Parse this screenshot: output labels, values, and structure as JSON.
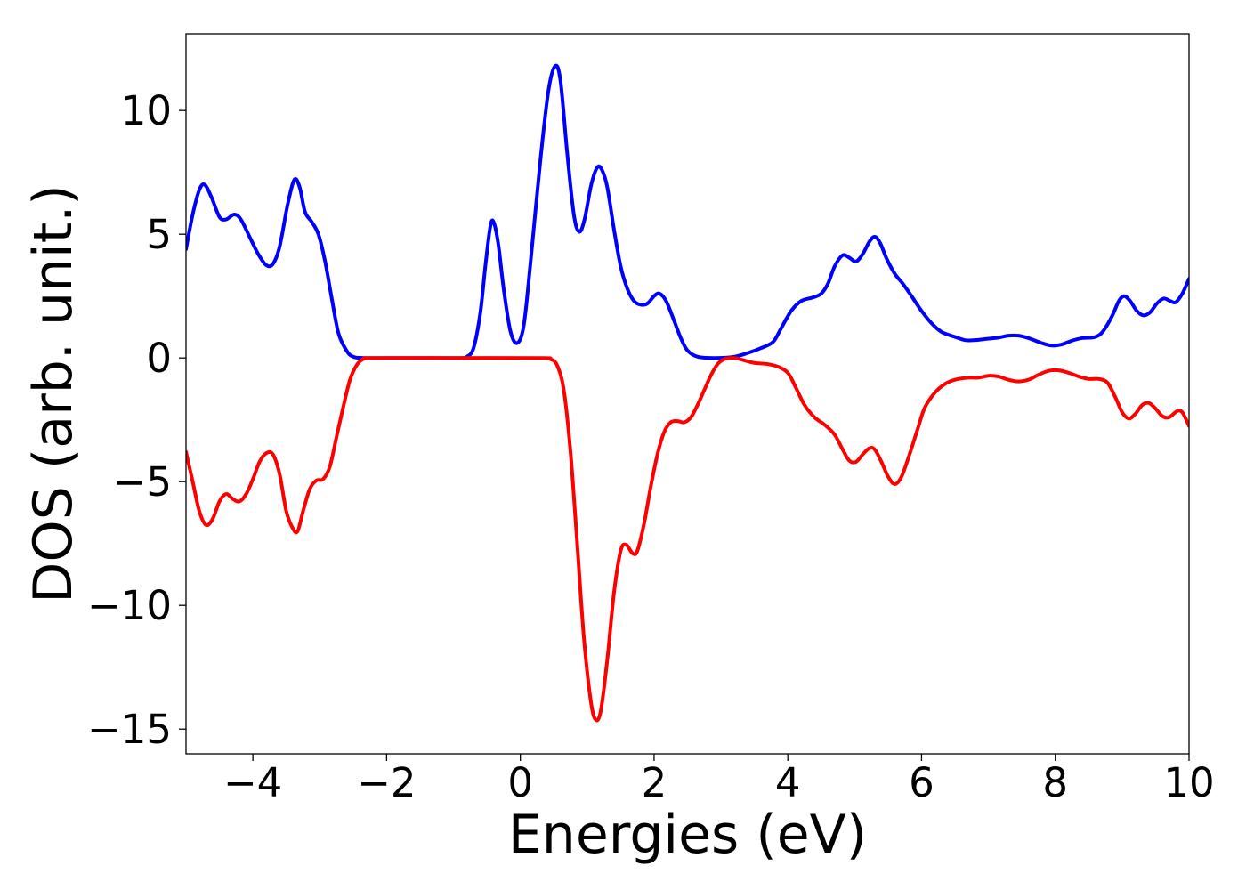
{
  "chart_data": {
    "type": "line",
    "title": "",
    "xlabel": "Energies (eV)",
    "ylabel": "DOS (arb. unit.)",
    "xlim": [
      -5,
      10
    ],
    "ylim": [
      -16,
      13.1
    ],
    "grid": false,
    "legend": "none",
    "xticks": [
      -4,
      -2,
      0,
      2,
      4,
      6,
      8,
      10
    ],
    "xtick_labels": [
      "−4",
      "−2",
      "0",
      "2",
      "4",
      "6",
      "8",
      "10"
    ],
    "yticks": [
      10,
      5,
      0,
      -5,
      -10,
      -15
    ],
    "ytick_labels": [
      "10",
      "5",
      "0",
      "−5",
      "−10",
      "−15"
    ],
    "series": [
      {
        "color": "#0000ff",
        "points": [
          [
            -5.0,
            4.4
          ],
          [
            -4.9,
            5.8
          ],
          [
            -4.8,
            6.8
          ],
          [
            -4.72,
            7.0
          ],
          [
            -4.62,
            6.5
          ],
          [
            -4.5,
            5.7
          ],
          [
            -4.4,
            5.6
          ],
          [
            -4.28,
            5.8
          ],
          [
            -4.18,
            5.6
          ],
          [
            -4.05,
            4.9
          ],
          [
            -3.92,
            4.2
          ],
          [
            -3.8,
            3.75
          ],
          [
            -3.7,
            3.8
          ],
          [
            -3.6,
            4.5
          ],
          [
            -3.48,
            6.2
          ],
          [
            -3.38,
            7.2
          ],
          [
            -3.3,
            6.9
          ],
          [
            -3.22,
            5.9
          ],
          [
            -3.12,
            5.5
          ],
          [
            -3.02,
            5.0
          ],
          [
            -2.92,
            3.9
          ],
          [
            -2.82,
            2.4
          ],
          [
            -2.72,
            1.0
          ],
          [
            -2.6,
            0.3
          ],
          [
            -2.5,
            0.05
          ],
          [
            -2.3,
            0.0
          ],
          [
            -1.5,
            0.0
          ],
          [
            -0.9,
            0.0
          ],
          [
            -0.8,
            0.05
          ],
          [
            -0.7,
            0.4
          ],
          [
            -0.6,
            1.8
          ],
          [
            -0.52,
            3.8
          ],
          [
            -0.45,
            5.3
          ],
          [
            -0.4,
            5.5
          ],
          [
            -0.33,
            4.6
          ],
          [
            -0.25,
            2.8
          ],
          [
            -0.15,
            1.1
          ],
          [
            -0.05,
            0.6
          ],
          [
            0.05,
            1.3
          ],
          [
            0.15,
            3.8
          ],
          [
            0.3,
            8.0
          ],
          [
            0.42,
            10.8
          ],
          [
            0.52,
            11.8
          ],
          [
            0.6,
            11.2
          ],
          [
            0.7,
            8.3
          ],
          [
            0.8,
            5.8
          ],
          [
            0.88,
            5.1
          ],
          [
            0.96,
            5.6
          ],
          [
            1.06,
            7.0
          ],
          [
            1.15,
            7.7
          ],
          [
            1.22,
            7.6
          ],
          [
            1.3,
            6.9
          ],
          [
            1.4,
            5.2
          ],
          [
            1.5,
            3.7
          ],
          [
            1.6,
            2.8
          ],
          [
            1.7,
            2.3
          ],
          [
            1.8,
            2.15
          ],
          [
            1.9,
            2.2
          ],
          [
            2.0,
            2.5
          ],
          [
            2.08,
            2.6
          ],
          [
            2.18,
            2.3
          ],
          [
            2.3,
            1.5
          ],
          [
            2.4,
            0.8
          ],
          [
            2.5,
            0.3
          ],
          [
            2.65,
            0.05
          ],
          [
            2.9,
            0.0
          ],
          [
            3.2,
            0.05
          ],
          [
            3.4,
            0.2
          ],
          [
            3.6,
            0.4
          ],
          [
            3.78,
            0.65
          ],
          [
            3.9,
            1.2
          ],
          [
            4.05,
            1.9
          ],
          [
            4.2,
            2.3
          ],
          [
            4.38,
            2.45
          ],
          [
            4.5,
            2.6
          ],
          [
            4.6,
            3.0
          ],
          [
            4.7,
            3.7
          ],
          [
            4.82,
            4.15
          ],
          [
            4.92,
            4.05
          ],
          [
            5.02,
            3.9
          ],
          [
            5.12,
            4.2
          ],
          [
            5.22,
            4.7
          ],
          [
            5.3,
            4.9
          ],
          [
            5.38,
            4.65
          ],
          [
            5.48,
            4.0
          ],
          [
            5.6,
            3.4
          ],
          [
            5.72,
            3.0
          ],
          [
            5.85,
            2.5
          ],
          [
            6.0,
            1.9
          ],
          [
            6.15,
            1.4
          ],
          [
            6.3,
            1.05
          ],
          [
            6.5,
            0.85
          ],
          [
            6.65,
            0.72
          ],
          [
            6.8,
            0.72
          ],
          [
            7.0,
            0.78
          ],
          [
            7.15,
            0.82
          ],
          [
            7.3,
            0.9
          ],
          [
            7.45,
            0.9
          ],
          [
            7.6,
            0.8
          ],
          [
            7.8,
            0.6
          ],
          [
            7.95,
            0.5
          ],
          [
            8.1,
            0.55
          ],
          [
            8.25,
            0.7
          ],
          [
            8.4,
            0.8
          ],
          [
            8.6,
            0.85
          ],
          [
            8.72,
            1.1
          ],
          [
            8.85,
            1.7
          ],
          [
            8.95,
            2.3
          ],
          [
            9.03,
            2.5
          ],
          [
            9.12,
            2.3
          ],
          [
            9.22,
            1.9
          ],
          [
            9.32,
            1.72
          ],
          [
            9.42,
            1.85
          ],
          [
            9.52,
            2.2
          ],
          [
            9.62,
            2.4
          ],
          [
            9.72,
            2.3
          ],
          [
            9.8,
            2.25
          ],
          [
            9.9,
            2.6
          ],
          [
            10.0,
            3.2
          ]
        ]
      },
      {
        "color": "#ff0000",
        "points": [
          [
            -5.0,
            -3.8
          ],
          [
            -4.9,
            -5.0
          ],
          [
            -4.8,
            -6.2
          ],
          [
            -4.7,
            -6.75
          ],
          [
            -4.6,
            -6.5
          ],
          [
            -4.5,
            -5.8
          ],
          [
            -4.4,
            -5.5
          ],
          [
            -4.3,
            -5.7
          ],
          [
            -4.2,
            -5.8
          ],
          [
            -4.1,
            -5.5
          ],
          [
            -4.0,
            -4.9
          ],
          [
            -3.9,
            -4.2
          ],
          [
            -3.8,
            -3.85
          ],
          [
            -3.7,
            -3.9
          ],
          [
            -3.6,
            -4.7
          ],
          [
            -3.5,
            -6.2
          ],
          [
            -3.4,
            -6.9
          ],
          [
            -3.33,
            -7.0
          ],
          [
            -3.25,
            -6.2
          ],
          [
            -3.15,
            -5.3
          ],
          [
            -3.05,
            -4.95
          ],
          [
            -2.95,
            -4.9
          ],
          [
            -2.85,
            -4.4
          ],
          [
            -2.75,
            -3.2
          ],
          [
            -2.65,
            -2.0
          ],
          [
            -2.55,
            -0.9
          ],
          [
            -2.45,
            -0.3
          ],
          [
            -2.35,
            -0.05
          ],
          [
            -2.2,
            0.0
          ],
          [
            -1.0,
            0.0
          ],
          [
            0.3,
            0.0
          ],
          [
            0.45,
            -0.05
          ],
          [
            0.55,
            -0.3
          ],
          [
            0.65,
            -1.3
          ],
          [
            0.75,
            -3.8
          ],
          [
            0.85,
            -7.5
          ],
          [
            0.95,
            -11.3
          ],
          [
            1.05,
            -13.8
          ],
          [
            1.12,
            -14.6
          ],
          [
            1.2,
            -14.3
          ],
          [
            1.3,
            -12.2
          ],
          [
            1.4,
            -9.5
          ],
          [
            1.5,
            -7.8
          ],
          [
            1.58,
            -7.55
          ],
          [
            1.68,
            -7.9
          ],
          [
            1.75,
            -7.8
          ],
          [
            1.85,
            -6.7
          ],
          [
            1.95,
            -5.2
          ],
          [
            2.05,
            -3.9
          ],
          [
            2.15,
            -3.0
          ],
          [
            2.25,
            -2.6
          ],
          [
            2.35,
            -2.55
          ],
          [
            2.45,
            -2.6
          ],
          [
            2.55,
            -2.4
          ],
          [
            2.65,
            -1.9
          ],
          [
            2.75,
            -1.3
          ],
          [
            2.85,
            -0.7
          ],
          [
            2.95,
            -0.25
          ],
          [
            3.05,
            -0.05
          ],
          [
            3.2,
            0.0
          ],
          [
            3.35,
            -0.1
          ],
          [
            3.5,
            -0.2
          ],
          [
            3.7,
            -0.25
          ],
          [
            3.85,
            -0.35
          ],
          [
            4.0,
            -0.6
          ],
          [
            4.12,
            -1.2
          ],
          [
            4.25,
            -1.9
          ],
          [
            4.4,
            -2.4
          ],
          [
            4.55,
            -2.7
          ],
          [
            4.7,
            -3.1
          ],
          [
            4.82,
            -3.7
          ],
          [
            4.92,
            -4.15
          ],
          [
            5.02,
            -4.2
          ],
          [
            5.12,
            -3.9
          ],
          [
            5.22,
            -3.65
          ],
          [
            5.3,
            -3.7
          ],
          [
            5.4,
            -4.2
          ],
          [
            5.5,
            -4.8
          ],
          [
            5.6,
            -5.1
          ],
          [
            5.7,
            -4.8
          ],
          [
            5.82,
            -3.9
          ],
          [
            5.95,
            -2.8
          ],
          [
            6.05,
            -2.0
          ],
          [
            6.2,
            -1.4
          ],
          [
            6.35,
            -1.05
          ],
          [
            6.5,
            -0.88
          ],
          [
            6.7,
            -0.8
          ],
          [
            6.85,
            -0.8
          ],
          [
            7.0,
            -0.72
          ],
          [
            7.15,
            -0.75
          ],
          [
            7.3,
            -0.88
          ],
          [
            7.45,
            -0.95
          ],
          [
            7.6,
            -0.88
          ],
          [
            7.75,
            -0.68
          ],
          [
            7.9,
            -0.52
          ],
          [
            8.05,
            -0.5
          ],
          [
            8.2,
            -0.6
          ],
          [
            8.35,
            -0.75
          ],
          [
            8.5,
            -0.85
          ],
          [
            8.65,
            -0.85
          ],
          [
            8.78,
            -1.0
          ],
          [
            8.9,
            -1.6
          ],
          [
            9.0,
            -2.2
          ],
          [
            9.1,
            -2.45
          ],
          [
            9.2,
            -2.25
          ],
          [
            9.3,
            -1.9
          ],
          [
            9.4,
            -1.82
          ],
          [
            9.5,
            -2.05
          ],
          [
            9.6,
            -2.35
          ],
          [
            9.7,
            -2.4
          ],
          [
            9.82,
            -2.15
          ],
          [
            9.9,
            -2.2
          ],
          [
            10.0,
            -2.75
          ]
        ]
      }
    ]
  }
}
